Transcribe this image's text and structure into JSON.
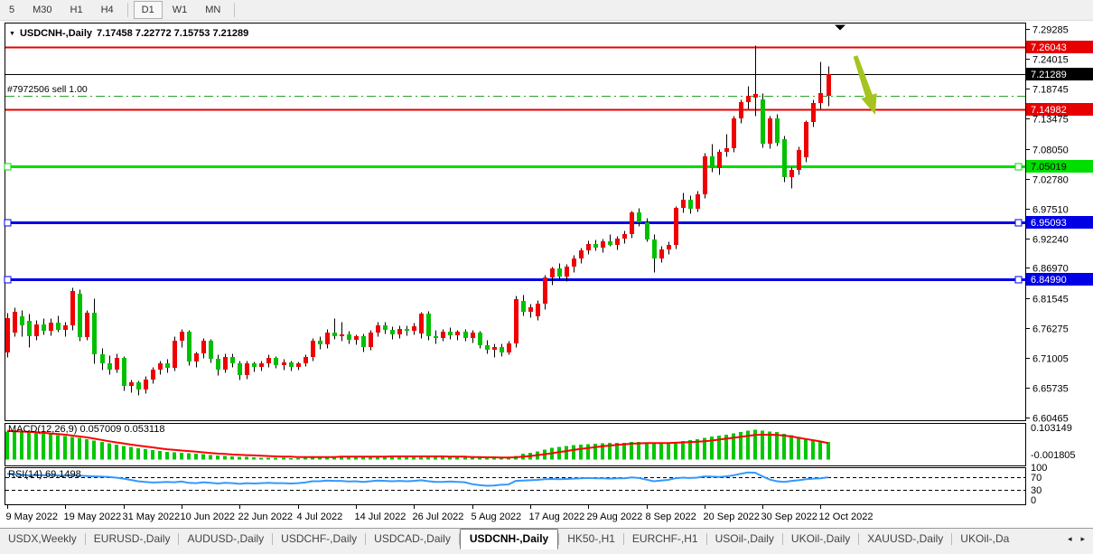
{
  "toolbar": {
    "buttons": [
      "5",
      "M30",
      "H1",
      "H4",
      "D1",
      "W1",
      "MN"
    ],
    "active": "D1",
    "group_breaks": [
      4,
      7
    ]
  },
  "chart": {
    "symbol": "USDCNH-,Daily",
    "ohlc": "7.17458 7.22772 7.15753 7.21289",
    "dropdown_icon": "▼"
  },
  "order": {
    "label": "#7972506 sell 1.00",
    "price": 7.1746
  },
  "price_axis": {
    "ticks": [
      "7.29285",
      "7.24015",
      "7.18745",
      "7.13475",
      "7.08050",
      "7.02780",
      "6.97510",
      "6.92240",
      "6.86970",
      "6.81545",
      "6.76275",
      "6.71005",
      "6.65735",
      "6.60465"
    ],
    "badges": [
      {
        "label": "7.26043",
        "price": 7.26043,
        "bg": "#e60000",
        "fg": "#ffffff"
      },
      {
        "label": "7.21289",
        "price": 7.21289,
        "bg": "#000000",
        "fg": "#ffffff"
      },
      {
        "label": "7.14982",
        "price": 7.14982,
        "bg": "#e60000",
        "fg": "#ffffff"
      },
      {
        "label": "7.05019",
        "price": 7.05019,
        "bg": "#00dd00",
        "fg": "#000000"
      },
      {
        "label": "6.95093",
        "price": 6.95093,
        "bg": "#0000e6",
        "fg": "#ffffff"
      },
      {
        "label": "6.84990",
        "price": 6.8499,
        "bg": "#0000e6",
        "fg": "#ffffff"
      }
    ]
  },
  "macd": {
    "label": "MACD(12,26,9) 0.057009 0.053118",
    "axis_max": "0.103149",
    "axis_min": "-0.001805"
  },
  "rsi": {
    "label": "RSI(14) 69.1498",
    "axis": [
      "100",
      "70",
      "30",
      "0"
    ]
  },
  "date_axis": [
    "9 May 2022",
    "19 May 2022",
    "31 May 2022",
    "10 Jun 2022",
    "22 Jun 2022",
    "4 Jul 2022",
    "14 Jul 2022",
    "26 Jul 2022",
    "5 Aug 2022",
    "17 Aug 2022",
    "29 Aug 2022",
    "8 Sep 2022",
    "20 Sep 2022",
    "30 Sep 2022",
    "12 Oct 2022"
  ],
  "tabs": {
    "items": [
      "USDX,Weekly",
      "EURUSD-,Daily",
      "AUDUSD-,Daily",
      "USDCHF-,Daily",
      "USDCAD-,Daily",
      "USDCNH-,Daily",
      "HK50-,H1",
      "EURCHF-,H1",
      "USOil-,Daily",
      "UKOil-,Daily",
      "XAUUSD-,Daily",
      "UKOil-,Da"
    ],
    "active": "USDCNH-,Daily",
    "scroll_left": "◂",
    "scroll_right": "▸"
  },
  "colors": {
    "bull": "#f00000",
    "bear": "#00c000",
    "wick": "#000000",
    "resistance_line": "#e60000",
    "support_green": "#00dd00",
    "support_blue": "#0000e6",
    "current_price_line": "#000000",
    "order_line": "#2ca02c",
    "macd_hist": "#00c800",
    "macd_signal": "#ff0000",
    "rsi_line": "#3399ff",
    "arrow_annotation": "#a4c420",
    "marker_triangle": "#000000"
  },
  "chart_data": {
    "type": "candlestick",
    "title": "USDCNH-,Daily",
    "ohlc_display": {
      "open": "7.17458",
      "high": "7.22772",
      "low": "7.15753",
      "close": "7.21289"
    },
    "y_axis_range": {
      "top": 7.29285,
      "bottom": 6.60465
    },
    "x_labels": [
      "9 May 2022",
      "19 May 2022",
      "31 May 2022",
      "10 Jun 2022",
      "22 Jun 2022",
      "4 Jul 2022",
      "14 Jul 2022",
      "26 Jul 2022",
      "5 Aug 2022",
      "17 Aug 2022",
      "29 Aug 2022",
      "8 Sep 2022",
      "20 Sep 2022",
      "30 Sep 2022",
      "12 Oct 2022"
    ],
    "candles": [
      [
        6.72,
        6.79,
        6.712,
        6.781
      ],
      [
        6.755,
        6.8,
        6.748,
        6.792
      ],
      [
        6.784,
        6.795,
        6.749,
        6.768
      ],
      [
        6.776,
        6.788,
        6.73,
        6.749
      ],
      [
        6.749,
        6.778,
        6.742,
        6.77
      ],
      [
        6.77,
        6.781,
        6.752,
        6.758
      ],
      [
        6.758,
        6.78,
        6.75,
        6.772
      ],
      [
        6.772,
        6.785,
        6.756,
        6.76
      ],
      [
        6.76,
        6.775,
        6.748,
        6.768
      ],
      [
        6.768,
        6.835,
        6.76,
        6.829
      ],
      [
        6.824,
        6.832,
        6.74,
        6.747
      ],
      [
        6.747,
        6.795,
        6.742,
        6.79
      ],
      [
        6.79,
        6.816,
        6.7,
        6.716
      ],
      [
        6.716,
        6.728,
        6.69,
        6.7
      ],
      [
        6.7,
        6.715,
        6.682,
        6.69
      ],
      [
        6.69,
        6.718,
        6.685,
        6.71
      ],
      [
        6.71,
        6.714,
        6.653,
        6.66
      ],
      [
        6.66,
        6.672,
        6.65,
        6.667
      ],
      [
        6.667,
        6.67,
        6.645,
        6.655
      ],
      [
        6.655,
        6.678,
        6.648,
        6.672
      ],
      [
        6.672,
        6.695,
        6.665,
        6.69
      ],
      [
        6.69,
        6.706,
        6.682,
        6.7
      ],
      [
        6.7,
        6.708,
        6.684,
        6.692
      ],
      [
        6.692,
        6.748,
        6.688,
        6.74
      ],
      [
        6.74,
        6.762,
        6.73,
        6.756
      ],
      [
        6.756,
        6.76,
        6.698,
        6.704
      ],
      [
        6.704,
        6.722,
        6.695,
        6.718
      ],
      [
        6.718,
        6.745,
        6.71,
        6.74
      ],
      [
        6.74,
        6.744,
        6.702,
        6.708
      ],
      [
        6.708,
        6.716,
        6.68,
        6.69
      ],
      [
        6.69,
        6.718,
        6.684,
        6.712
      ],
      [
        6.712,
        6.718,
        6.694,
        6.7
      ],
      [
        6.7,
        6.706,
        6.672,
        6.68
      ],
      [
        6.68,
        6.705,
        6.674,
        6.7
      ],
      [
        6.7,
        6.704,
        6.686,
        6.694
      ],
      [
        6.694,
        6.706,
        6.688,
        6.7
      ],
      [
        6.7,
        6.716,
        6.694,
        6.71
      ],
      [
        6.71,
        6.714,
        6.692,
        6.698
      ],
      [
        6.698,
        6.708,
        6.69,
        6.702
      ],
      [
        6.702,
        6.706,
        6.688,
        6.695
      ],
      [
        6.695,
        6.704,
        6.69,
        6.7
      ],
      [
        6.7,
        6.716,
        6.696,
        6.712
      ],
      [
        6.712,
        6.745,
        6.706,
        6.74
      ],
      [
        6.74,
        6.748,
        6.726,
        6.735
      ],
      [
        6.735,
        6.762,
        6.728,
        6.755
      ],
      [
        6.755,
        6.78,
        6.744,
        6.748
      ],
      [
        6.748,
        6.775,
        6.74,
        6.752
      ],
      [
        6.752,
        6.758,
        6.736,
        6.742
      ],
      [
        6.742,
        6.752,
        6.734,
        6.748
      ],
      [
        6.748,
        6.754,
        6.722,
        6.73
      ],
      [
        6.73,
        6.76,
        6.724,
        6.755
      ],
      [
        6.755,
        6.775,
        6.748,
        6.768
      ],
      [
        6.768,
        6.774,
        6.754,
        6.76
      ],
      [
        6.76,
        6.766,
        6.744,
        6.752
      ],
      [
        6.752,
        6.768,
        6.746,
        6.762
      ],
      [
        6.762,
        6.768,
        6.75,
        6.758
      ],
      [
        6.758,
        6.772,
        6.752,
        6.766
      ],
      [
        6.754,
        6.792,
        6.746,
        6.788
      ],
      [
        6.788,
        6.794,
        6.742,
        6.748
      ],
      [
        6.748,
        6.76,
        6.736,
        6.745
      ],
      [
        6.745,
        6.762,
        6.74,
        6.756
      ],
      [
        6.756,
        6.764,
        6.744,
        6.75
      ],
      [
        6.75,
        6.76,
        6.742,
        6.756
      ],
      [
        6.756,
        6.762,
        6.74,
        6.746
      ],
      [
        6.746,
        6.76,
        6.738,
        6.755
      ],
      [
        6.755,
        6.759,
        6.728,
        6.732
      ],
      [
        6.732,
        6.742,
        6.718,
        6.724
      ],
      [
        6.724,
        6.736,
        6.712,
        6.73
      ],
      [
        6.73,
        6.736,
        6.714,
        6.72
      ],
      [
        6.72,
        6.74,
        6.716,
        6.736
      ],
      [
        6.736,
        6.82,
        6.73,
        6.814
      ],
      [
        6.811,
        6.822,
        6.786,
        6.792
      ],
      [
        6.792,
        6.806,
        6.782,
        6.8
      ],
      [
        6.784,
        6.812,
        6.778,
        6.806
      ],
      [
        6.806,
        6.858,
        6.796,
        6.852
      ],
      [
        6.852,
        6.872,
        6.84,
        6.868
      ],
      [
        6.868,
        6.878,
        6.85,
        6.855
      ],
      [
        6.855,
        6.876,
        6.846,
        6.872
      ],
      [
        6.872,
        6.892,
        6.862,
        6.886
      ],
      [
        6.886,
        6.906,
        6.878,
        6.9
      ],
      [
        6.9,
        6.918,
        6.894,
        6.912
      ],
      [
        6.912,
        6.92,
        6.9,
        6.906
      ],
      [
        6.906,
        6.922,
        6.898,
        6.916
      ],
      [
        6.916,
        6.93,
        6.908,
        6.91
      ],
      [
        6.91,
        6.926,
        6.902,
        6.922
      ],
      [
        6.922,
        6.936,
        6.914,
        6.93
      ],
      [
        6.93,
        6.972,
        6.924,
        6.968
      ],
      [
        6.968,
        6.976,
        6.944,
        6.95
      ],
      [
        6.95,
        6.958,
        6.916,
        6.92
      ],
      [
        6.92,
        6.93,
        6.862,
        6.887
      ],
      [
        6.887,
        6.908,
        6.88,
        6.902
      ],
      [
        6.902,
        6.916,
        6.894,
        6.91
      ],
      [
        6.91,
        6.98,
        6.904,
        6.976
      ],
      [
        6.976,
        7.004,
        6.968,
        6.99
      ],
      [
        6.99,
        6.998,
        6.966,
        6.975
      ],
      [
        6.975,
        7.006,
        6.97,
        7.0
      ],
      [
        7.0,
        7.074,
        6.994,
        7.068
      ],
      [
        7.068,
        7.09,
        7.04,
        7.046
      ],
      [
        7.046,
        7.08,
        7.036,
        7.075
      ],
      [
        7.075,
        7.108,
        7.068,
        7.082
      ],
      [
        7.082,
        7.14,
        7.076,
        7.135
      ],
      [
        7.135,
        7.168,
        7.126,
        7.163
      ],
      [
        7.163,
        7.192,
        7.152,
        7.175
      ],
      [
        7.171,
        7.2646,
        7.14,
        7.177
      ],
      [
        7.168,
        7.18,
        7.084,
        7.09
      ],
      [
        7.09,
        7.14,
        7.082,
        7.134
      ],
      [
        7.134,
        7.142,
        7.086,
        7.091
      ],
      [
        7.097,
        7.104,
        7.022,
        7.03
      ],
      [
        7.03,
        7.048,
        7.012,
        7.044
      ],
      [
        7.044,
        7.085,
        7.036,
        7.078
      ],
      [
        7.065,
        7.132,
        7.058,
        7.128
      ],
      [
        7.128,
        7.168,
        7.12,
        7.162
      ],
      [
        7.162,
        7.235,
        7.152,
        7.18
      ],
      [
        7.17458,
        7.22772,
        7.15753,
        7.21289
      ]
    ],
    "hlines": [
      {
        "price": 7.26043,
        "color": "#e60000",
        "width": 2,
        "handles": false
      },
      {
        "price": 7.14982,
        "color": "#e60000",
        "width": 2,
        "handles": false
      },
      {
        "price": 7.05019,
        "color": "#00dd00",
        "width": 3,
        "handles": true
      },
      {
        "price": 6.95093,
        "color": "#0000e6",
        "width": 3,
        "handles": true
      },
      {
        "price": 6.8499,
        "color": "#0000e6",
        "width": 3,
        "handles": true
      }
    ],
    "current_price": 7.21289,
    "order_line": {
      "price": 7.1746,
      "style": "dash-dot"
    },
    "macd": {
      "max": 0.103149,
      "min": -0.001805,
      "hist": [
        0.09,
        0.089,
        0.088,
        0.087,
        0.086,
        0.084,
        0.082,
        0.079,
        0.076,
        0.073,
        0.069,
        0.065,
        0.061,
        0.056,
        0.052,
        0.048,
        0.044,
        0.04,
        0.036,
        0.033,
        0.03,
        0.027,
        0.025,
        0.023,
        0.022,
        0.02,
        0.018,
        0.017,
        0.015,
        0.013,
        0.012,
        0.01,
        0.009,
        0.008,
        0.007,
        0.006,
        0.006,
        0.005,
        0.005,
        0.004,
        0.004,
        0.005,
        0.006,
        0.007,
        0.008,
        0.009,
        0.01,
        0.01,
        0.009,
        0.008,
        0.008,
        0.009,
        0.01,
        0.01,
        0.009,
        0.009,
        0.01,
        0.011,
        0.01,
        0.009,
        0.008,
        0.008,
        0.007,
        0.007,
        0.006,
        0.005,
        0.004,
        0.004,
        0.004,
        0.004,
        0.012,
        0.018,
        0.022,
        0.026,
        0.032,
        0.037,
        0.04,
        0.043,
        0.046,
        0.048,
        0.05,
        0.051,
        0.052,
        0.053,
        0.053,
        0.054,
        0.056,
        0.057,
        0.055,
        0.052,
        0.051,
        0.052,
        0.056,
        0.06,
        0.062,
        0.065,
        0.07,
        0.074,
        0.077,
        0.08,
        0.084,
        0.089,
        0.093,
        0.096,
        0.093,
        0.09,
        0.088,
        0.083,
        0.078,
        0.072,
        0.066,
        0.061,
        0.058,
        0.057
      ],
      "signal": [
        0.092,
        0.091,
        0.09,
        0.089,
        0.088,
        0.086,
        0.084,
        0.082,
        0.08,
        0.077,
        0.074,
        0.071,
        0.067,
        0.063,
        0.059,
        0.055,
        0.052,
        0.048,
        0.045,
        0.042,
        0.039,
        0.036,
        0.033,
        0.031,
        0.029,
        0.027,
        0.025,
        0.023,
        0.021,
        0.019,
        0.018,
        0.016,
        0.015,
        0.014,
        0.013,
        0.012,
        0.011,
        0.01,
        0.009,
        0.009,
        0.008,
        0.008,
        0.008,
        0.008,
        0.008,
        0.008,
        0.009,
        0.009,
        0.009,
        0.009,
        0.009,
        0.009,
        0.009,
        0.01,
        0.01,
        0.01,
        0.01,
        0.01,
        0.01,
        0.01,
        0.01,
        0.009,
        0.009,
        0.009,
        0.008,
        0.008,
        0.007,
        0.007,
        0.006,
        0.006,
        0.007,
        0.009,
        0.011,
        0.014,
        0.017,
        0.02,
        0.024,
        0.027,
        0.031,
        0.034,
        0.037,
        0.04,
        0.043,
        0.045,
        0.047,
        0.049,
        0.051,
        0.052,
        0.053,
        0.053,
        0.053,
        0.053,
        0.054,
        0.055,
        0.056,
        0.057,
        0.059,
        0.061,
        0.064,
        0.067,
        0.07,
        0.073,
        0.076,
        0.079,
        0.08,
        0.08,
        0.079,
        0.077,
        0.074,
        0.07,
        0.066,
        0.062,
        0.058,
        0.0531
      ]
    },
    "rsi": {
      "levels": [
        70,
        30
      ],
      "values": [
        80,
        78,
        76,
        75,
        76,
        75,
        76,
        75,
        74,
        75,
        74,
        73,
        72,
        71,
        70,
        68,
        65,
        61,
        57,
        55,
        53,
        54,
        55,
        54,
        56,
        52,
        51,
        54,
        52,
        50,
        52,
        51,
        49,
        51,
        50,
        51,
        52,
        51,
        51,
        50,
        51,
        53,
        57,
        57,
        59,
        58,
        58,
        56,
        57,
        55,
        57,
        59,
        58,
        57,
        58,
        57,
        58,
        60,
        57,
        55,
        55,
        56,
        55,
        54,
        48,
        45,
        43,
        44,
        46,
        47,
        58,
        59,
        60,
        61,
        63,
        64,
        63,
        64,
        65,
        66,
        67,
        66,
        66,
        65,
        66,
        66,
        69,
        67,
        62,
        57,
        59,
        61,
        66,
        68,
        67,
        68,
        72,
        71,
        70,
        72,
        75,
        80,
        84,
        83,
        72,
        62,
        57,
        55,
        58,
        60,
        63,
        65,
        66,
        69.15
      ]
    },
    "annotations": [
      {
        "kind": "triangle-down-marker",
        "near_price": 7.275
      },
      {
        "kind": "arrow-down-right",
        "color": "#a4c420"
      }
    ]
  }
}
